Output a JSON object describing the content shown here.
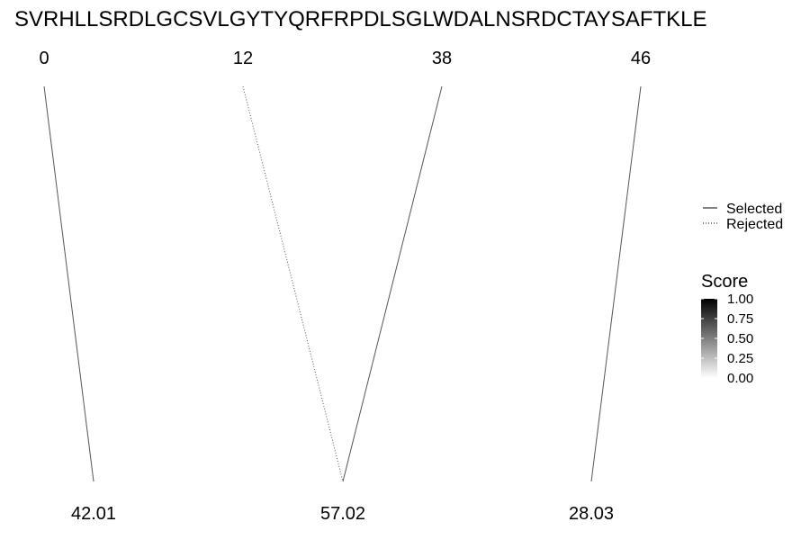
{
  "chart_data": {
    "type": "line",
    "sequence": "SVRHLLSRDLGCSVLGYTYQRFRPDLSGLWDALNSRDCTAYSAFTKLE",
    "top_labels": [
      "0",
      "12",
      "38",
      "46"
    ],
    "bottom_labels": [
      "42.01",
      "57.02",
      "28.03"
    ],
    "connections": [
      {
        "from": "0",
        "to": "42.01",
        "status": "Selected",
        "score": 0.5
      },
      {
        "from": "12",
        "to": "57.02",
        "status": "Rejected",
        "score": 0.5
      },
      {
        "from": "38",
        "to": "57.02",
        "status": "Selected",
        "score": 0.5
      },
      {
        "from": "46",
        "to": "28.03",
        "status": "Selected",
        "score": 0.5
      }
    ],
    "legend": {
      "line_types": [
        {
          "name": "Selected",
          "style": "solid"
        },
        {
          "name": "Rejected",
          "style": "dotted"
        }
      ],
      "score": {
        "title": "Score",
        "ticks": [
          "1.00",
          "0.75",
          "0.50",
          "0.25",
          "0.00"
        ],
        "range": [
          0,
          1
        ],
        "low_color": "#ffffff",
        "high_color": "#000000"
      },
      "placement": "right"
    },
    "line_color": "#555555"
  }
}
